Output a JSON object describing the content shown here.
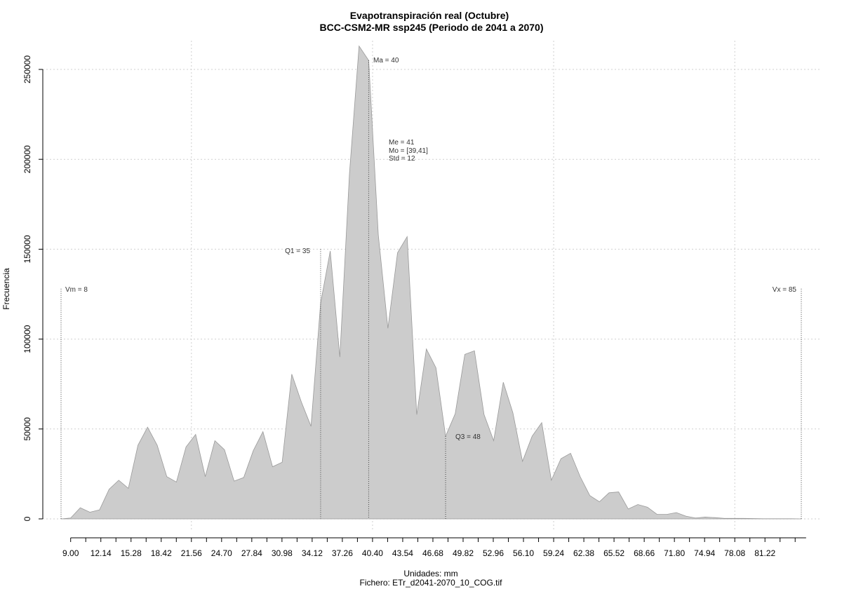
{
  "chart_data": {
    "type": "area",
    "title": "Evapotranspiración real (Octubre)",
    "subtitle": "BCC-CSM2-MR ssp245 (Periodo de 2041 a 2070)",
    "xlabel": "Unidades: mm",
    "xlabel2": "Fichero: ETr_d2041-2070_10_COG.tif",
    "ylabel": "Frecuencia",
    "xlim": [
      8,
      86
    ],
    "ylim": [
      0,
      265000
    ],
    "x_ticks": [
      "9.00",
      "12.14",
      "15.28",
      "18.42",
      "21.56",
      "24.70",
      "27.84",
      "30.98",
      "34.12",
      "37.26",
      "40.40",
      "43.54",
      "46.68",
      "49.82",
      "52.96",
      "56.10",
      "59.24",
      "62.38",
      "65.52",
      "68.66",
      "71.80",
      "74.94",
      "78.08",
      "81.22"
    ],
    "y_ticks": [
      "0",
      "50000",
      "100000",
      "150000",
      "200000",
      "250000"
    ],
    "grid": true,
    "fill_color": "#cccccc",
    "line_color": "#999999",
    "x": [
      8,
      9,
      10,
      11,
      12,
      13,
      14,
      15,
      16,
      17,
      18,
      19,
      20,
      21,
      22,
      23,
      24,
      25,
      26,
      27,
      28,
      29,
      30,
      31,
      32,
      33,
      34,
      35,
      36,
      37,
      38,
      39,
      40,
      41,
      42,
      43,
      44,
      45,
      46,
      47,
      48,
      49,
      50,
      51,
      52,
      53,
      54,
      55,
      56,
      57,
      58,
      59,
      60,
      61,
      62,
      63,
      64,
      65,
      66,
      67,
      68,
      69,
      70,
      71,
      72,
      73,
      74,
      75,
      76,
      77,
      78,
      79,
      80,
      81,
      82,
      83,
      84,
      85
    ],
    "values": [
      0,
      500,
      6200,
      3700,
      5000,
      16500,
      21500,
      17000,
      41000,
      51000,
      41000,
      23500,
      20500,
      40000,
      47000,
      23500,
      43500,
      38500,
      21000,
      23000,
      38000,
      48500,
      29000,
      31500,
      80500,
      65000,
      51500,
      120000,
      149000,
      90000,
      192000,
      263000,
      255000,
      158000,
      106000,
      148000,
      157000,
      58000,
      94500,
      84000,
      46000,
      58500,
      91500,
      93500,
      58000,
      43500,
      76000,
      59000,
      32000,
      46000,
      53500,
      21500,
      33500,
      36500,
      23500,
      13000,
      9500,
      14500,
      15000,
      5500,
      8000,
      6500,
      2500,
      2500,
      3500,
      1500,
      500,
      1000,
      700,
      300,
      300,
      300,
      200,
      100,
      100,
      100,
      100,
      0
    ],
    "annotations": {
      "vm": {
        "label": "Vm = 8",
        "x": 8,
        "y": 128000
      },
      "q1": {
        "label": "Q1 = 35",
        "x": 35,
        "y": 150000
      },
      "ma": {
        "label": "Ma = 40",
        "x": 40,
        "y": 255000
      },
      "me": {
        "label": "Me = 41"
      },
      "mo": {
        "label": "Mo = [39,41]"
      },
      "std": {
        "label": "Std = 12"
      },
      "q3": {
        "label": "Q3 = 48",
        "x": 48,
        "y": 46000
      },
      "vx": {
        "label": "Vx = 85",
        "x": 85,
        "y": 128000
      }
    }
  }
}
